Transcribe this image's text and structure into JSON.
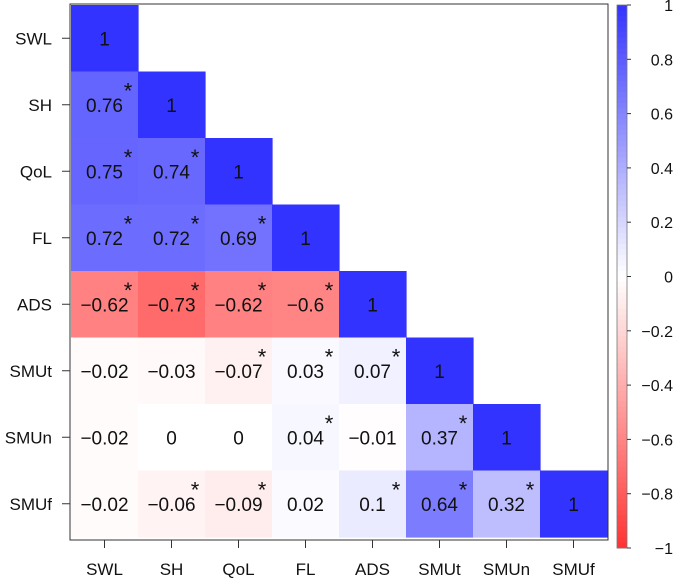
{
  "chart_data": {
    "type": "heatmap",
    "subtype": "lower-triangular correlation matrix",
    "row_labels": [
      "SWL",
      "SH",
      "QoL",
      "FL",
      "ADS",
      "SMUt",
      "SMUn",
      "SMUf"
    ],
    "col_labels": [
      "SWL",
      "SH",
      "QoL",
      "FL",
      "ADS",
      "SMUt",
      "SMUn",
      "SMUf"
    ],
    "cells": [
      [
        {
          "v": 1,
          "t": "1",
          "sig": false
        }
      ],
      [
        {
          "v": 0.76,
          "t": "0.76",
          "sig": true
        },
        {
          "v": 1,
          "t": "1",
          "sig": false
        }
      ],
      [
        {
          "v": 0.75,
          "t": "0.75",
          "sig": true
        },
        {
          "v": 0.74,
          "t": "0.74",
          "sig": true
        },
        {
          "v": 1,
          "t": "1",
          "sig": false
        }
      ],
      [
        {
          "v": 0.72,
          "t": "0.72",
          "sig": true
        },
        {
          "v": 0.72,
          "t": "0.72",
          "sig": true
        },
        {
          "v": 0.69,
          "t": "0.69",
          "sig": true
        },
        {
          "v": 1,
          "t": "1",
          "sig": false
        }
      ],
      [
        {
          "v": -0.62,
          "t": "−0.62",
          "sig": true
        },
        {
          "v": -0.73,
          "t": "−0.73",
          "sig": true
        },
        {
          "v": -0.62,
          "t": "−0.62",
          "sig": true
        },
        {
          "v": -0.6,
          "t": "−0.6",
          "sig": true
        },
        {
          "v": 1,
          "t": "1",
          "sig": false
        }
      ],
      [
        {
          "v": -0.02,
          "t": "−0.02",
          "sig": false
        },
        {
          "v": -0.03,
          "t": "−0.03",
          "sig": false
        },
        {
          "v": -0.07,
          "t": "−0.07",
          "sig": true
        },
        {
          "v": 0.03,
          "t": "0.03",
          "sig": true
        },
        {
          "v": 0.07,
          "t": "0.07",
          "sig": true
        },
        {
          "v": 1,
          "t": "1",
          "sig": false
        }
      ],
      [
        {
          "v": -0.02,
          "t": "−0.02",
          "sig": false
        },
        {
          "v": 0,
          "t": "0",
          "sig": false
        },
        {
          "v": 0,
          "t": "0",
          "sig": false
        },
        {
          "v": 0.04,
          "t": "0.04",
          "sig": true
        },
        {
          "v": -0.01,
          "t": "−0.01",
          "sig": false
        },
        {
          "v": 0.37,
          "t": "0.37",
          "sig": true
        },
        {
          "v": 1,
          "t": "1",
          "sig": false
        }
      ],
      [
        {
          "v": -0.02,
          "t": "−0.02",
          "sig": false
        },
        {
          "v": -0.06,
          "t": "−0.06",
          "sig": true
        },
        {
          "v": -0.09,
          "t": "−0.09",
          "sig": true
        },
        {
          "v": 0.02,
          "t": "0.02",
          "sig": false
        },
        {
          "v": 0.1,
          "t": "0.1",
          "sig": true
        },
        {
          "v": 0.64,
          "t": "0.64",
          "sig": true
        },
        {
          "v": 0.32,
          "t": "0.32",
          "sig": true
        },
        {
          "v": 1,
          "t": "1",
          "sig": false
        }
      ]
    ],
    "significance_marker": "*",
    "colorbar": {
      "range": [
        -1,
        1
      ],
      "ticks": [
        "1",
        "0.8",
        "0.6",
        "0.4",
        "0.2",
        "0",
        "−0.2",
        "−0.4",
        "−0.6",
        "−0.8",
        "−1"
      ],
      "tick_values": [
        1,
        0.8,
        0.6,
        0.4,
        0.2,
        0,
        -0.2,
        -0.4,
        -0.6,
        -0.8,
        -1
      ],
      "positive_color": "#3333ff",
      "negative_color": "#ff3333",
      "neutral_color": "#ffffff"
    }
  }
}
